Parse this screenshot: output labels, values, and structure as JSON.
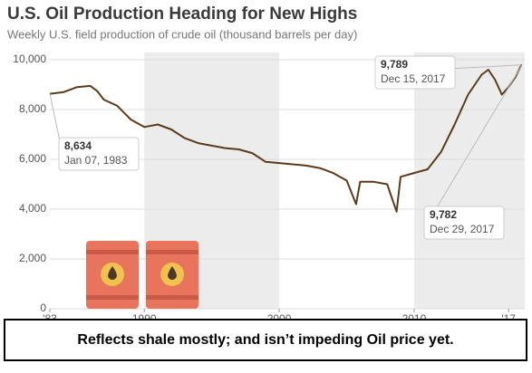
{
  "chart_data": {
    "type": "line",
    "title": "U.S. Oil Production Heading for New Highs",
    "subtitle": "Weekly U.S. field production of crude oil (thousand barrels per day)",
    "x": [
      1983.0,
      1984.0,
      1985.0,
      1986.0,
      1986.5,
      1987.0,
      1988.0,
      1989.0,
      1990.0,
      1991.0,
      1992.0,
      1993.0,
      1994.0,
      1995.0,
      1996.0,
      1997.0,
      1998.0,
      1999.0,
      2000.0,
      2001.0,
      2002.0,
      2003.0,
      2004.0,
      2005.0,
      2005.7,
      2006.0,
      2007.0,
      2008.0,
      2008.7,
      2009.0,
      2010.0,
      2011.0,
      2012.0,
      2013.0,
      2014.0,
      2015.0,
      2015.5,
      2016.0,
      2016.5,
      2017.0,
      2017.5,
      2017.95,
      2017.99
    ],
    "values": [
      8634,
      8700,
      8900,
      8950,
      8750,
      8400,
      8150,
      7600,
      7300,
      7400,
      7200,
      6850,
      6650,
      6550,
      6450,
      6400,
      6250,
      5900,
      5850,
      5800,
      5750,
      5650,
      5450,
      5150,
      4200,
      5100,
      5100,
      5000,
      3900,
      5300,
      5450,
      5600,
      6300,
      7400,
      8600,
      9400,
      9600,
      9200,
      8600,
      8900,
      9300,
      9789,
      9782
    ],
    "color": "#5b3b1c",
    "xlim": [
      1983,
      2018.2
    ],
    "xticks": [
      {
        "value": 1983,
        "label": "'83"
      },
      1990,
      2000,
      2010,
      {
        "value": 2017,
        "label": "'17"
      }
    ],
    "ylim": [
      0,
      10000
    ],
    "yticks": [
      0,
      {
        "value": 2000,
        "label": "2,000"
      },
      {
        "value": 4000,
        "label": "4,000"
      },
      {
        "value": 6000,
        "label": "6,000"
      },
      {
        "value": 8000,
        "label": "8,000"
      },
      {
        "value": 10000,
        "label": "10,000"
      }
    ],
    "grid": true,
    "annotations": [
      {
        "x": 1983.0,
        "value": 8634,
        "label": "8,634",
        "date": "Jan 07, 1983"
      },
      {
        "x": 2017.95,
        "value": 9789,
        "label": "9,789",
        "date": "Dec 15, 2017"
      },
      {
        "x": 2017.99,
        "value": 9782,
        "label": "9,782",
        "date": "Dec 29, 2017"
      }
    ],
    "footnote": "Reflects shale mostly; and isn’t impeding Oil price yet."
  }
}
